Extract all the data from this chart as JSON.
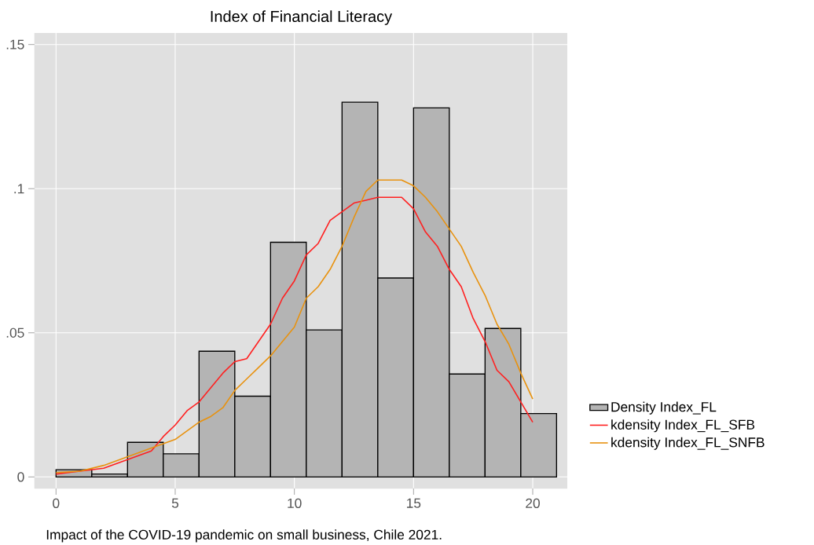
{
  "chart_data": {
    "type": "histogram",
    "title": "Index of Financial Literacy",
    "annotations": [
      "Impact of the COVID-19 pandemic on small business, Chile 2021."
    ],
    "series": [
      {
        "name": "Density Index_FL",
        "color": "#b4b4b4",
        "bins": [
          0,
          1.5,
          3,
          4.5,
          6,
          7.5,
          9,
          10.5,
          12,
          13.5,
          15,
          16.5,
          18,
          19.5,
          21
        ],
        "values": [
          0.0025,
          0.001,
          0.012,
          0.008,
          0.0436,
          0.028,
          0.0814,
          0.051,
          0.13,
          0.069,
          0.128,
          0.0357,
          0.0515,
          0.022
        ]
      },
      {
        "type": "line",
        "name": "kdensity Index_FL_SFB",
        "color": "#ff2020",
        "x": [
          0,
          1,
          1.5,
          2,
          3,
          4,
          4.5,
          5,
          5.5,
          6,
          6.5,
          7,
          7.5,
          8,
          8.5,
          9,
          9.5,
          10,
          10.5,
          11,
          11.5,
          12,
          12.5,
          13,
          13.5,
          14,
          14.5,
          15,
          15.5,
          16,
          16.5,
          17,
          17.5,
          18,
          18.5,
          19,
          19.5,
          20
        ],
        "values": [
          0.001,
          0.002,
          0.0025,
          0.003,
          0.006,
          0.009,
          0.014,
          0.018,
          0.023,
          0.026,
          0.031,
          0.036,
          0.04,
          0.041,
          0.047,
          0.053,
          0.062,
          0.068,
          0.077,
          0.081,
          0.089,
          0.092,
          0.095,
          0.096,
          0.097,
          0.097,
          0.097,
          0.093,
          0.085,
          0.08,
          0.072,
          0.066,
          0.055,
          0.047,
          0.037,
          0.033,
          0.026,
          0.019
        ]
      },
      {
        "type": "line",
        "name": "kdensity Index_FL_SNFB",
        "color": "#e8920f",
        "x": [
          0,
          1,
          2,
          3,
          4,
          5,
          5.5,
          6,
          6.5,
          7,
          7.5,
          8,
          8.5,
          9,
          9.5,
          10,
          10.5,
          11,
          11.5,
          12,
          12.5,
          13,
          13.5,
          14,
          14.5,
          15,
          15.5,
          16,
          16.5,
          17,
          17.5,
          18,
          18.5,
          19,
          19.5,
          20
        ],
        "values": [
          0.0015,
          0.002,
          0.004,
          0.007,
          0.01,
          0.013,
          0.016,
          0.019,
          0.021,
          0.024,
          0.03,
          0.034,
          0.038,
          0.042,
          0.047,
          0.052,
          0.062,
          0.066,
          0.072,
          0.08,
          0.09,
          0.099,
          0.103,
          0.103,
          0.103,
          0.101,
          0.097,
          0.092,
          0.086,
          0.08,
          0.071,
          0.063,
          0.053,
          0.046,
          0.036,
          0.027
        ]
      }
    ],
    "xlim": [
      -0.9,
      21.45
    ],
    "ylim": [
      -0.004,
      0.154
    ],
    "xticks": [
      0,
      5,
      10,
      15,
      20
    ],
    "yticks": [
      {
        "value": 0,
        "label": "0"
      },
      {
        "value": 0.05,
        "label": ".05"
      },
      {
        "value": 0.1,
        "label": ".1"
      },
      {
        "value": 0.15,
        "label": ".15"
      }
    ],
    "grid": true,
    "legend": "right"
  }
}
